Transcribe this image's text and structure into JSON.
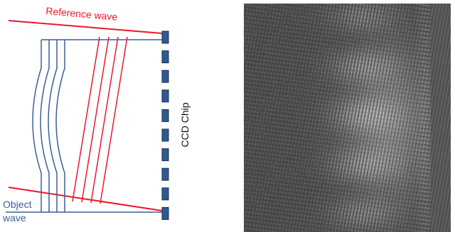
{
  "diagram": {
    "reference_label": "Reference wave",
    "object_label_line1": "Object",
    "object_label_line2": "wave",
    "ccd_label": "CCD Chip",
    "colors": {
      "reference": "#e8192c",
      "object": "#3a5f9a",
      "ccd_fill": "#2f5b8e",
      "ccd_stroke": "#1a2f52"
    }
  },
  "hologram": {
    "kind": "interference pattern image",
    "colors": {
      "dark": "#3a3a3a",
      "light": "#cfcfcf"
    }
  }
}
